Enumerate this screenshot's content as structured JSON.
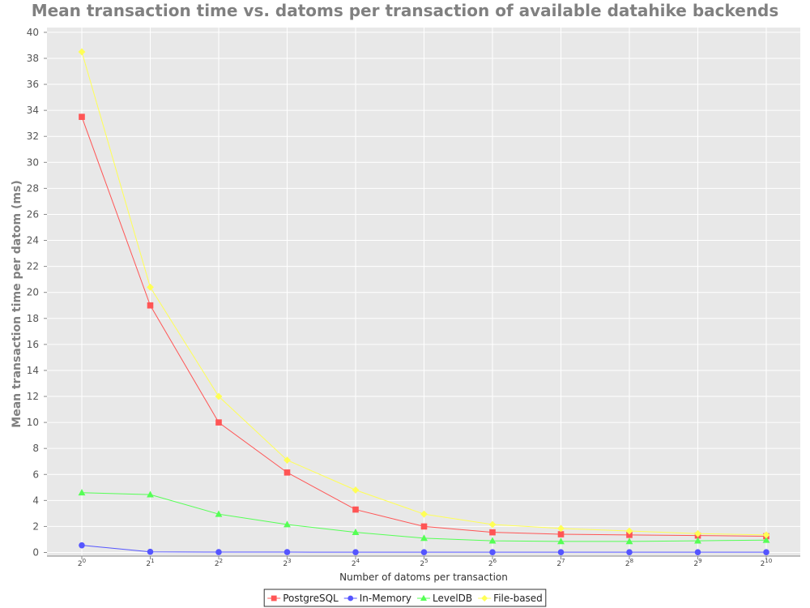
{
  "chart_data": {
    "type": "line",
    "title": "Mean transaction time vs. datoms per transaction of available datahike backends",
    "xlabel": "Number of datoms per transaction",
    "ylabel": "Mean transaction time per datom (ms)",
    "ylim": [
      0,
      40
    ],
    "yticks": [
      0,
      2,
      4,
      6,
      8,
      10,
      12,
      14,
      16,
      18,
      20,
      22,
      24,
      26,
      28,
      30,
      32,
      34,
      36,
      38,
      40
    ],
    "x_tick_base": "2",
    "x": [
      0,
      1,
      2,
      3,
      4,
      5,
      6,
      7,
      8,
      9,
      10
    ],
    "grid": true,
    "legend_position": "bottom-center",
    "series": [
      {
        "name": "PostgreSQL",
        "color": "#ff5555",
        "marker": "square",
        "values": [
          33.5,
          19.0,
          10.0,
          6.15,
          3.3,
          2.0,
          1.55,
          1.4,
          1.35,
          1.3,
          1.25
        ]
      },
      {
        "name": "In-Memory",
        "color": "#5555ff",
        "marker": "circle",
        "values": [
          0.55,
          0.05,
          0.03,
          0.03,
          0.02,
          0.02,
          0.02,
          0.02,
          0.02,
          0.02,
          0.02
        ]
      },
      {
        "name": "LevelDB",
        "color": "#55ff55",
        "marker": "triangle",
        "values": [
          4.6,
          4.45,
          2.95,
          2.15,
          1.55,
          1.1,
          0.9,
          0.85,
          0.85,
          0.9,
          0.95
        ]
      },
      {
        "name": "File-based",
        "color": "#ffff55",
        "marker": "diamond",
        "values": [
          38.5,
          20.4,
          12.0,
          7.1,
          4.8,
          2.95,
          2.15,
          1.85,
          1.65,
          1.45,
          1.35
        ]
      }
    ]
  }
}
